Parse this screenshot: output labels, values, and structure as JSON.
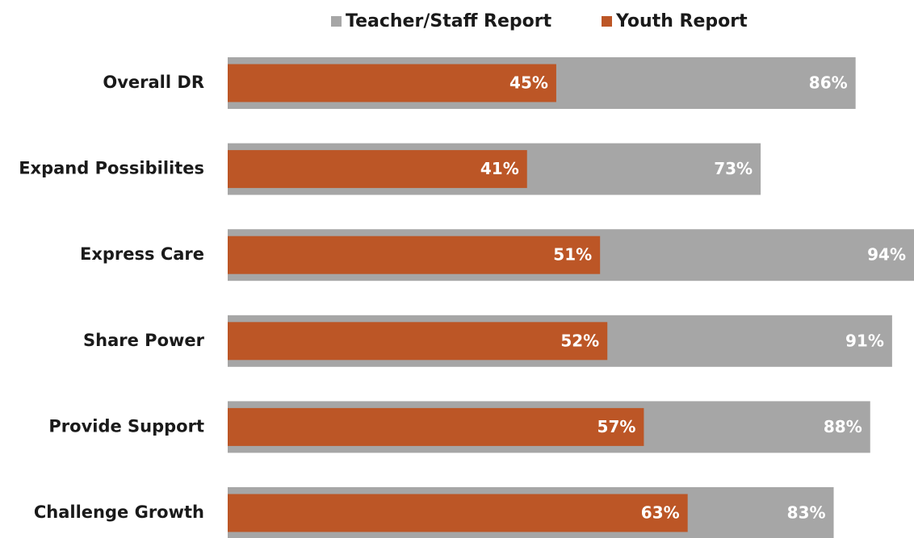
{
  "chart_data": {
    "type": "bar",
    "orientation": "horizontal",
    "overlap": true,
    "categories": [
      "Overall DR",
      "Expand Possibilites",
      "Express Care",
      "Share Power",
      "Provide Support",
      "Challenge Growth"
    ],
    "series": [
      {
        "name": "Teacher/Staff Report",
        "color": "#a6a6a6",
        "values": [
          86,
          73,
          94,
          91,
          88,
          83
        ],
        "value_labels": [
          "86%",
          "73%",
          "94%",
          "91%",
          "88%",
          "83%"
        ]
      },
      {
        "name": "Youth Report",
        "color": "#bc5626",
        "values": [
          45,
          41,
          51,
          52,
          57,
          63
        ],
        "value_labels": [
          "45%",
          "41%",
          "51%",
          "52%",
          "57%",
          "63%"
        ]
      }
    ],
    "legend": "top"
  }
}
